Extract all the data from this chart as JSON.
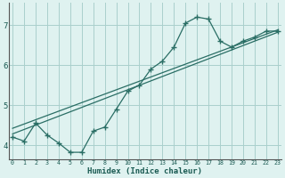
{
  "bg_color": "#dff2f0",
  "grid_color": "#aacfcc",
  "line_color": "#2a6e65",
  "x_label": "Humidex (Indice chaleur)",
  "x_ticks": [
    0,
    1,
    2,
    3,
    4,
    5,
    6,
    7,
    8,
    9,
    10,
    11,
    12,
    13,
    14,
    15,
    16,
    17,
    18,
    19,
    20,
    21,
    22,
    23
  ],
  "y_ticks": [
    4,
    5,
    6,
    7
  ],
  "xlim": [
    -0.3,
    23.3
  ],
  "ylim": [
    3.65,
    7.55
  ],
  "curve1_x": [
    0,
    1,
    2,
    3,
    4,
    5,
    6,
    7,
    8,
    9,
    10,
    11,
    12,
    13,
    14,
    15,
    16,
    17,
    18,
    19,
    20,
    21,
    22,
    23
  ],
  "curve1_y": [
    4.2,
    4.1,
    4.55,
    4.25,
    4.05,
    3.82,
    3.82,
    4.35,
    4.45,
    4.9,
    5.35,
    5.5,
    5.9,
    6.1,
    6.45,
    7.05,
    7.2,
    7.15,
    6.6,
    6.45,
    6.6,
    6.7,
    6.85,
    6.85
  ],
  "line2_x": [
    0,
    23
  ],
  "line2_y": [
    4.42,
    6.88
  ],
  "line3_x": [
    0,
    23
  ],
  "line3_y": [
    4.28,
    6.82
  ]
}
